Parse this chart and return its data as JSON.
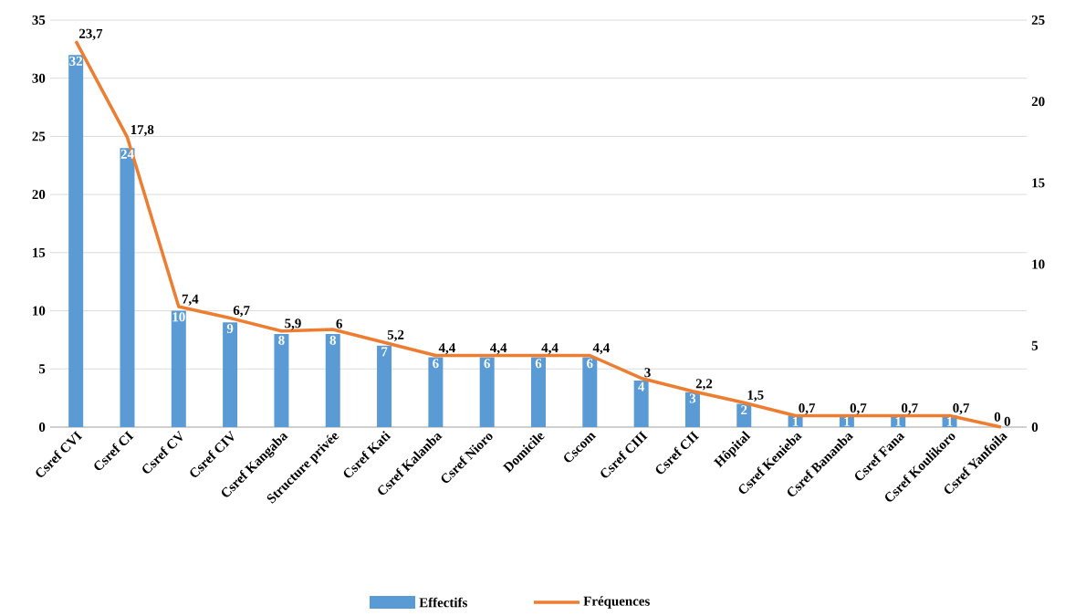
{
  "chart_data": {
    "type": "bar",
    "categories": [
      "Csref CVI",
      "Csref CI",
      "Csref CV",
      "Csref CIV",
      "Csref Kangaba",
      "Structure privée",
      "Csref Kati",
      "Csref Kalanba",
      "Csref Nioro",
      "Domicile",
      "Cscom",
      "Csref CIII",
      "Csref CII",
      "Hôpital",
      "Csref Kenieba",
      "Csref Bananba",
      "Csref Fana",
      "Csref Koulikoro",
      "Csref Yanfoila"
    ],
    "series": [
      {
        "name": "Effectifs",
        "axis": "y",
        "color": "#5b9bd5",
        "values": [
          32,
          24,
          10,
          9,
          8,
          8,
          7,
          6,
          6,
          6,
          6,
          4,
          3,
          2,
          1,
          1,
          1,
          1,
          0
        ],
        "value_labels": [
          "32",
          "24",
          "10",
          "9",
          "8",
          "8",
          "7",
          "6",
          "6",
          "6",
          "6",
          "4",
          "3",
          "2",
          "1",
          "1",
          "1",
          "1",
          "0"
        ]
      },
      {
        "name": "Fréquences",
        "type": "line",
        "axis": "y2",
        "color": "#ed7d31",
        "values": [
          23.7,
          17.8,
          7.4,
          6.7,
          5.9,
          6,
          5.2,
          4.4,
          4.4,
          4.4,
          4.4,
          3,
          2.2,
          1.5,
          0.7,
          0.7,
          0.7,
          0.7,
          0
        ],
        "value_labels": [
          "23,7",
          "17,8",
          "7,4",
          "6,7",
          "5,9",
          "6",
          "5,2",
          "4,4",
          "4,4",
          "4,4",
          "4,4",
          "3",
          "2,2",
          "1,5",
          "0,7",
          "0,7",
          "0,7",
          "0,7",
          "0"
        ]
      }
    ],
    "ylim": [
      0,
      35
    ],
    "yticks": [
      0,
      5,
      10,
      15,
      20,
      25,
      30,
      35
    ],
    "y2lim": [
      0,
      25
    ],
    "y2ticks": [
      0,
      5,
      10,
      15,
      20,
      25
    ],
    "grid": "y",
    "legend": "bottom",
    "marker": "none",
    "line_style": "solid"
  }
}
